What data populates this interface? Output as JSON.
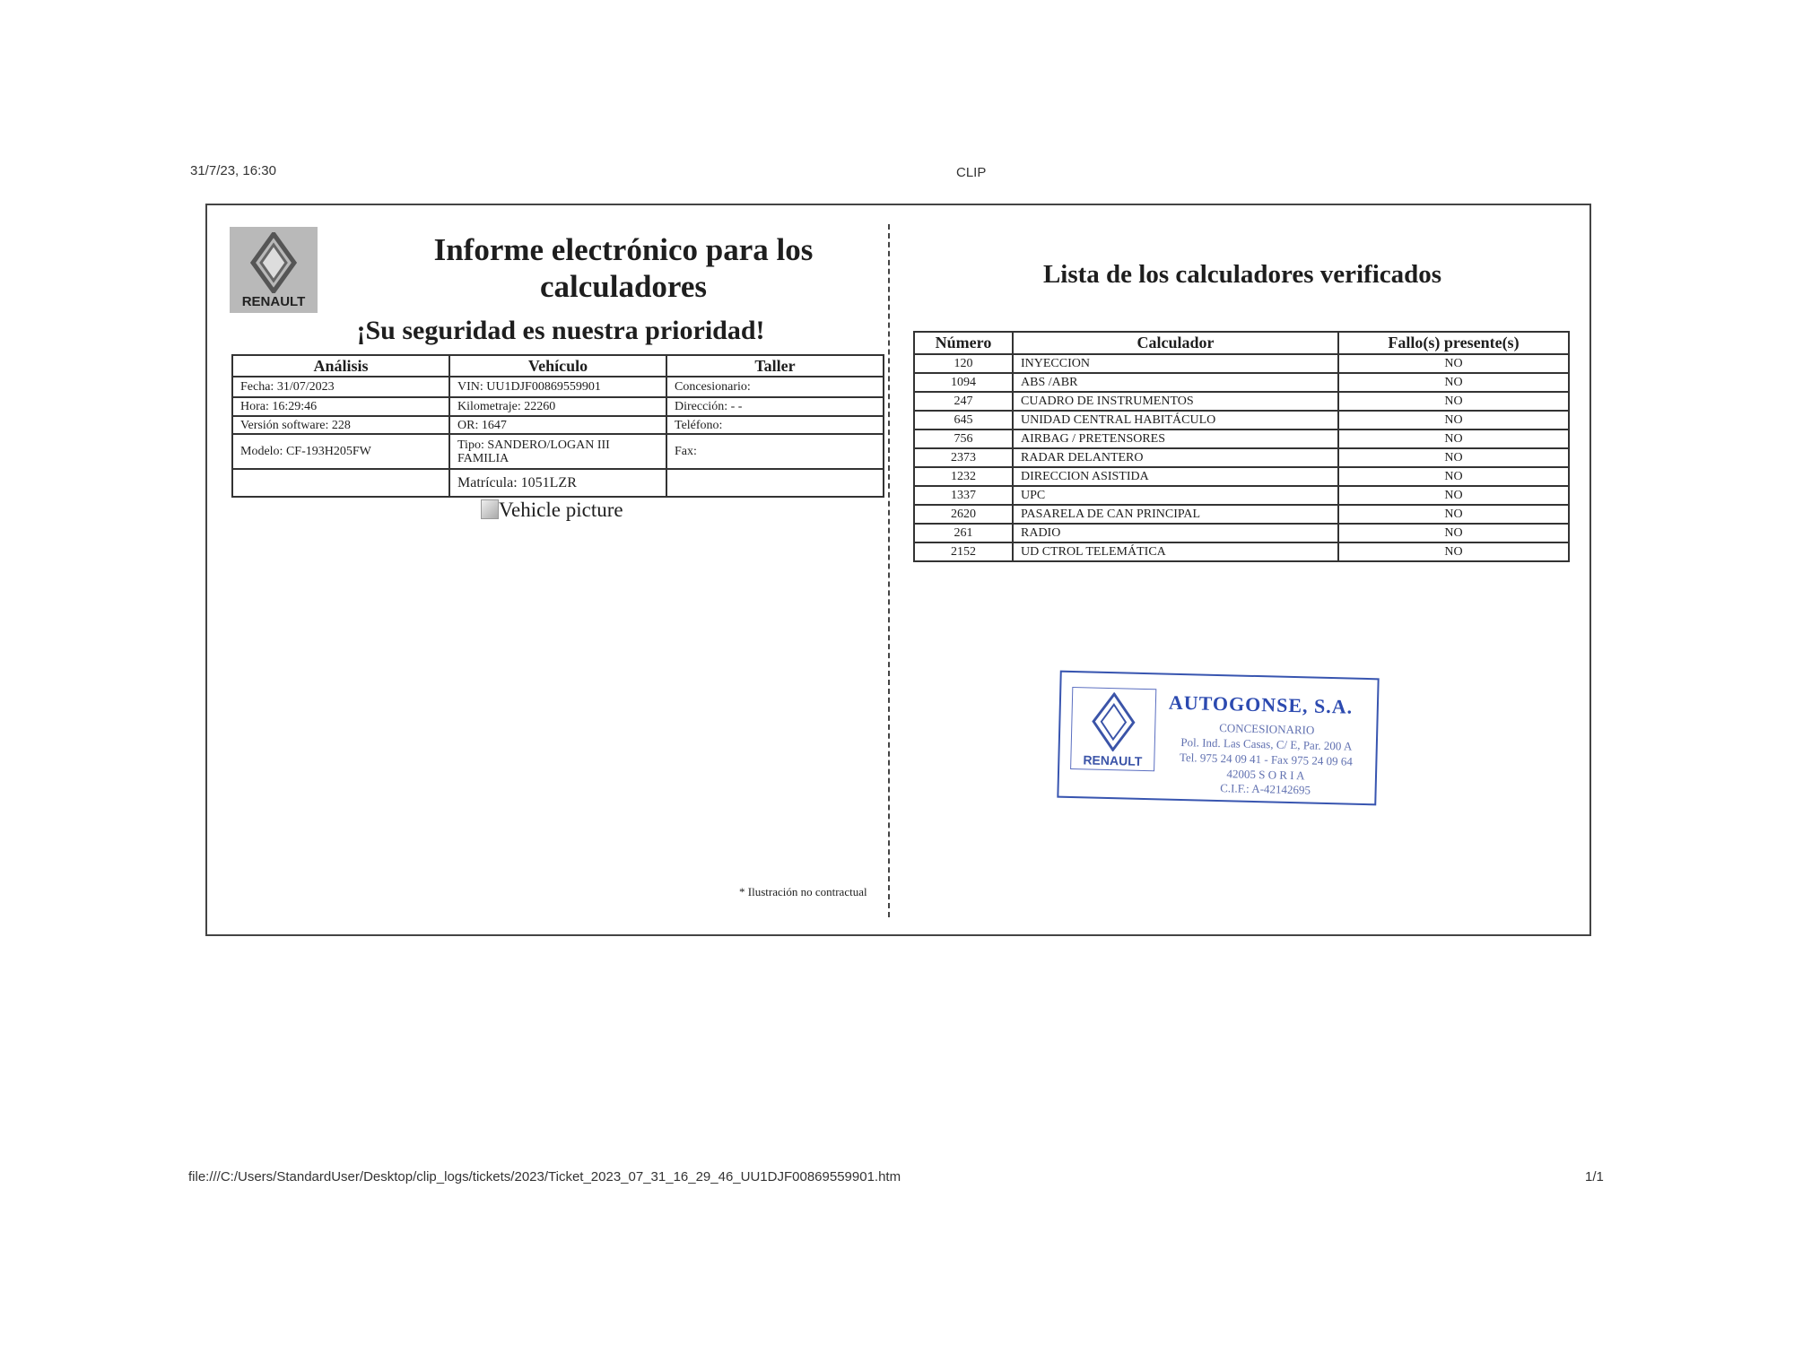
{
  "print_header": {
    "datetime": "31/7/23, 16:30",
    "title": "CLIP"
  },
  "report": {
    "logo_text": "RENAULT",
    "title": "Informe electrónico para los calculadores",
    "subtitle": "¡Su seguridad es nuestra prioridad!",
    "info_table": {
      "headers": [
        "Análisis",
        "Vehículo",
        "Taller"
      ],
      "rows": [
        [
          "Fecha: 31/07/2023",
          "VIN: UU1DJF00869559901",
          "Concesionario:"
        ],
        [
          "Hora: 16:29:46",
          "Kilometraje: 22260",
          "Dirección: - -"
        ],
        [
          "Versión software: 228",
          "OR: 1647",
          "Teléfono:"
        ],
        [
          "Modelo: CF-193H205FW",
          "Tipo: SANDERO/LOGAN III FAMILIA",
          "Fax:"
        ],
        [
          "",
          "Matrícula:  1051LZR",
          ""
        ]
      ]
    },
    "vehicle_picture_alt": "Vehicle picture",
    "footnote": "* Ilustración no contractual"
  },
  "calculators": {
    "title": "Lista de los calculadores verificados",
    "headers": [
      "Número",
      "Calculador",
      "Fallo(s) presente(s)"
    ],
    "rows": [
      [
        "120",
        "INYECCION",
        "NO"
      ],
      [
        "1094",
        "ABS /ABR",
        "NO"
      ],
      [
        "247",
        "CUADRO DE INSTRUMENTOS",
        "NO"
      ],
      [
        "645",
        "UNIDAD CENTRAL HABITÁCULO",
        "NO"
      ],
      [
        "756",
        "AIRBAG / PRETENSORES",
        "NO"
      ],
      [
        "2373",
        "RADAR DELANTERO",
        "NO"
      ],
      [
        "1232",
        "DIRECCION ASISTIDA",
        "NO"
      ],
      [
        "1337",
        "UPC",
        "NO"
      ],
      [
        "2620",
        "PASARELA DE CAN PRINCIPAL",
        "NO"
      ],
      [
        "261",
        "RADIO",
        "NO"
      ],
      [
        "2152",
        "UD CTROL TELEMÁTICA",
        "NO"
      ]
    ]
  },
  "stamp": {
    "logo_text": "RENAULT",
    "name": "AUTOGONSE, S.A.",
    "lines": [
      "CONCESIONARIO",
      "Pol. Ind. Las Casas, C/ E, Par. 200 A",
      "Tel. 975 24 09 41 - Fax 975 24 09 64",
      "42005  S O R I A",
      "C.I.F.: A-42142695"
    ],
    "color": "#3b54a8"
  },
  "print_footer": {
    "path": "file:///C:/Users/StandardUser/Desktop/clip_logs/tickets/2023/Ticket_2023_07_31_16_29_46_UU1DJF00869559901.htm",
    "page": "1/1"
  }
}
